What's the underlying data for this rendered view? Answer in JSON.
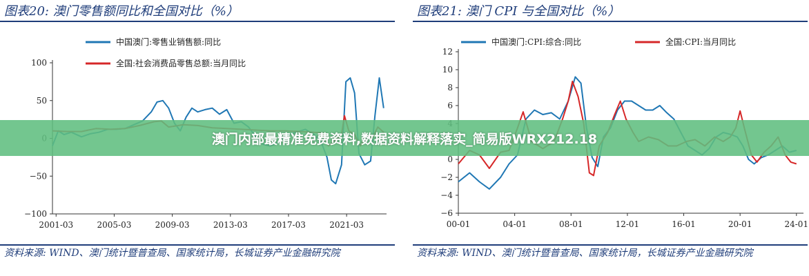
{
  "banner": {
    "text": "澳门内部最精准免费资料,数据资料解释落实_简易版WRX212.18"
  },
  "colors": {
    "blue": "#1f77b4",
    "red": "#d62728",
    "navy": "#1f3d7a",
    "overlay": "#60be80"
  },
  "chart_data": [
    {
      "type": "line",
      "title": "图表20:  澳门零售额同比和全国对比（%）",
      "source": "资料来源: WIND、澳门统计暨普查局、国家统计局，长城证券产业金融研究院",
      "ylim": [
        -100,
        100
      ],
      "yticks": [
        -100,
        -50,
        0,
        50,
        100
      ],
      "xlim": [
        2001.0,
        2024.0
      ],
      "xtick_labels": [
        "2001-03",
        "2005-03",
        "2009-03",
        "2013-03",
        "2017-03",
        "2021-03"
      ],
      "xtick_pos": [
        2001.25,
        2005.25,
        2009.25,
        2013.25,
        2017.25,
        2021.25
      ],
      "legend": "top-left",
      "grid": false,
      "series": [
        {
          "name": "中国澳门:零售业销售额:同比",
          "color": "blue",
          "x": [
            2001.0,
            2001.4,
            2001.8,
            2002.3,
            2003.0,
            2003.6,
            2004.2,
            2004.8,
            2005.4,
            2006.0,
            2006.6,
            2007.2,
            2007.8,
            2008.2,
            2008.6,
            2009.0,
            2009.4,
            2009.8,
            2010.2,
            2010.6,
            2011.0,
            2011.5,
            2012.0,
            2012.5,
            2013.0,
            2013.5,
            2014.0,
            2014.5,
            2015.0,
            2015.5,
            2016.0,
            2016.6,
            2017.2,
            2017.8,
            2018.4,
            2019.0,
            2019.5,
            2019.9,
            2020.2,
            2020.5,
            2020.9,
            2021.2,
            2021.5,
            2021.8,
            2022.1,
            2022.5,
            2022.9,
            2023.2,
            2023.5,
            2023.8
          ],
          "y": [
            -10,
            10,
            5,
            8,
            2,
            6,
            8,
            12,
            12,
            13,
            18,
            23,
            35,
            48,
            50,
            40,
            20,
            10,
            28,
            40,
            35,
            38,
            40,
            32,
            38,
            20,
            22,
            15,
            2,
            -8,
            -10,
            -5,
            5,
            8,
            12,
            5,
            -5,
            -25,
            -55,
            -60,
            -35,
            75,
            80,
            60,
            -20,
            -35,
            -30,
            30,
            80,
            40
          ]
        },
        {
          "name": "全国:社会消费品零售总额:当月同比",
          "color": "red",
          "x": [
            2001.0,
            2002.0,
            2003.0,
            2004.0,
            2005.0,
            2006.0,
            2007.0,
            2008.0,
            2008.5,
            2009.0,
            2010.0,
            2011.0,
            2012.0,
            2013.0,
            2014.0,
            2015.0,
            2016.0,
            2017.0,
            2018.0,
            2019.0,
            2019.6,
            2020.0,
            2020.3,
            2020.6,
            2020.9,
            2021.1,
            2021.4,
            2021.8,
            2022.2,
            2022.6,
            2023.0,
            2023.4,
            2023.8
          ],
          "y": [
            10,
            9,
            9,
            13,
            12,
            13,
            17,
            22,
            23,
            15,
            18,
            17,
            14,
            13,
            12,
            11,
            10,
            10,
            9,
            8,
            7,
            -10,
            -5,
            0,
            5,
            30,
            10,
            5,
            -10,
            5,
            0,
            15,
            8
          ]
        }
      ]
    },
    {
      "type": "line",
      "title": "图表21:  澳门 CPI 与全国对比（%）",
      "source": "资料来源: WIND、澳门统计暨普查局、国家统计局，长城证券产业金融研究院",
      "ylim": [
        -6,
        12
      ],
      "yticks": [
        -6,
        -4,
        -2,
        0,
        2,
        4,
        6,
        8,
        10,
        12
      ],
      "xlim": [
        2000.0,
        2024.5
      ],
      "xtick_labels": [
        "00-01",
        "04-01",
        "08-01",
        "12-01",
        "16-01",
        "20-01",
        "24-01"
      ],
      "xtick_pos": [
        2000.0,
        2004.0,
        2008.0,
        2012.0,
        2016.0,
        2020.0,
        2024.0
      ],
      "legend": "top",
      "grid": false,
      "series": [
        {
          "name": "中国澳门:CPI:综合:同比",
          "color": "blue",
          "x": [
            2000.0,
            2000.8,
            2001.5,
            2002.2,
            2003.0,
            2003.6,
            2004.2,
            2004.8,
            2005.4,
            2006.0,
            2006.6,
            2007.2,
            2007.8,
            2008.3,
            2008.7,
            2009.1,
            2009.5,
            2009.9,
            2010.3,
            2010.8,
            2011.3,
            2011.8,
            2012.3,
            2012.8,
            2013.3,
            2013.8,
            2014.3,
            2014.8,
            2015.3,
            2015.8,
            2016.3,
            2016.8,
            2017.3,
            2017.8,
            2018.3,
            2018.8,
            2019.3,
            2019.8,
            2020.2,
            2020.6,
            2021.0,
            2021.5,
            2022.0,
            2022.5,
            2023.0,
            2023.5,
            2024.0
          ],
          "y": [
            -2.5,
            -1.5,
            -2.5,
            -3.3,
            -2.0,
            -0.5,
            0.5,
            4.5,
            5.5,
            5.0,
            5.2,
            4.5,
            6.5,
            9.2,
            8.5,
            3.5,
            0.2,
            -0.8,
            2.5,
            3.5,
            5.5,
            6.5,
            6.5,
            6.0,
            5.5,
            5.5,
            6.0,
            5.2,
            4.5,
            3.0,
            1.5,
            1.0,
            0.5,
            1.2,
            2.5,
            3.0,
            2.8,
            2.5,
            1.5,
            0.0,
            -0.5,
            0.2,
            0.5,
            1.0,
            1.5,
            0.8,
            1.0
          ]
        },
        {
          "name": "全国:CPI:当月同比",
          "color": "red",
          "x": [
            2000.0,
            2000.8,
            2001.5,
            2002.2,
            2003.0,
            2003.6,
            2004.2,
            2004.6,
            2005.2,
            2006.0,
            2006.8,
            2007.4,
            2007.8,
            2008.1,
            2008.5,
            2008.9,
            2009.3,
            2009.6,
            2010.0,
            2010.6,
            2011.1,
            2011.5,
            2011.9,
            2012.4,
            2012.8,
            2013.5,
            2014.2,
            2014.9,
            2015.5,
            2016.2,
            2016.8,
            2017.5,
            2018.2,
            2018.8,
            2019.3,
            2019.7,
            2020.0,
            2020.3,
            2020.8,
            2021.2,
            2021.7,
            2022.2,
            2022.7,
            2023.2,
            2023.6,
            2024.0
          ],
          "y": [
            -0.5,
            1.0,
            0.5,
            -1.0,
            0.8,
            1.0,
            3.5,
            5.3,
            2.0,
            1.2,
            2.0,
            4.5,
            6.5,
            8.7,
            7.0,
            4.0,
            -1.5,
            -1.8,
            1.5,
            3.0,
            5.0,
            6.5,
            4.5,
            3.0,
            2.0,
            2.5,
            2.2,
            1.5,
            1.5,
            2.0,
            2.2,
            1.5,
            2.5,
            2.0,
            2.5,
            3.5,
            5.4,
            3.5,
            0.5,
            -0.3,
            0.8,
            1.5,
            2.5,
            0.5,
            -0.3,
            -0.5
          ]
        }
      ]
    }
  ]
}
